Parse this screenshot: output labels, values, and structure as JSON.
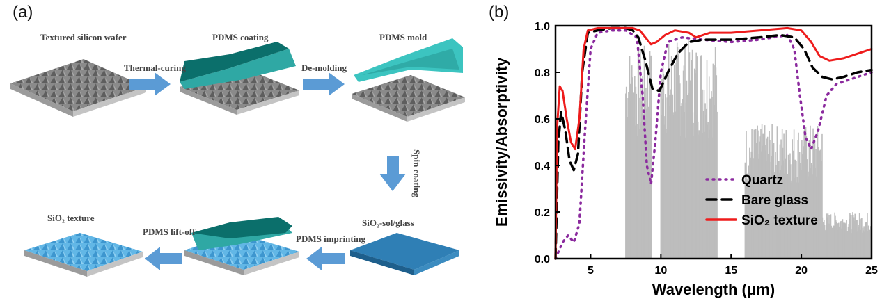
{
  "panel_a": {
    "letter": "(a)",
    "steps": {
      "textured_wafer": "Textured silicon wafer",
      "thermal_curing": "Thermal-curing",
      "pdms_coating": "PDMS coating",
      "de_molding": "De-molding",
      "pdms_mold": "PDMS mold",
      "spin_coating": "Spin coating",
      "sio2_sol_glass": "SiO₂-sol/glass",
      "pdms_imprinting": "PDMS imprinting",
      "pdms_liftoff": "PDMS lift-off",
      "sio2_texture": "SiO₂ texture"
    },
    "colors": {
      "silicon": "#707070",
      "pdms": "#3cc4c0",
      "arrow": "#5b9bd5",
      "glass": "#2f7fb5",
      "texture": "#4aa8dd"
    }
  },
  "panel_b": {
    "letter": "(b)"
  },
  "chart_data": {
    "type": "line",
    "xlabel": "Wavelength (μm)",
    "ylabel": "Emissivity/Absorptivity",
    "xlim": [
      2.5,
      25
    ],
    "ylim": [
      0.0,
      1.0
    ],
    "xticks": [
      "5",
      "10",
      "15",
      "20",
      "25"
    ],
    "yticks": [
      "0.0",
      "0.2",
      "0.4",
      "0.6",
      "0.8",
      "1.0"
    ],
    "grid": false,
    "legend_position": "lower-right",
    "series": [
      {
        "name": "Quartz",
        "color": "#8b2a9e",
        "style": "dotted",
        "points": [
          [
            2.5,
            0.0
          ],
          [
            3.0,
            0.07
          ],
          [
            3.4,
            0.1
          ],
          [
            3.8,
            0.07
          ],
          [
            4.2,
            0.15
          ],
          [
            4.6,
            0.55
          ],
          [
            5.0,
            0.9
          ],
          [
            5.5,
            0.97
          ],
          [
            6.5,
            0.98
          ],
          [
            7.5,
            0.98
          ],
          [
            8.3,
            0.95
          ],
          [
            8.7,
            0.7
          ],
          [
            9.0,
            0.4
          ],
          [
            9.3,
            0.32
          ],
          [
            9.6,
            0.5
          ],
          [
            10.0,
            0.8
          ],
          [
            10.5,
            0.93
          ],
          [
            11.5,
            0.95
          ],
          [
            13.0,
            0.94
          ],
          [
            15.0,
            0.93
          ],
          [
            17.0,
            0.94
          ],
          [
            19.0,
            0.96
          ],
          [
            19.5,
            0.9
          ],
          [
            19.9,
            0.7
          ],
          [
            20.3,
            0.52
          ],
          [
            20.7,
            0.47
          ],
          [
            21.2,
            0.55
          ],
          [
            21.8,
            0.7
          ],
          [
            22.5,
            0.75
          ],
          [
            23.5,
            0.77
          ],
          [
            24.5,
            0.79
          ],
          [
            25.0,
            0.8
          ]
        ]
      },
      {
        "name": "Bare glass",
        "color": "#000000",
        "style": "dashed",
        "points": [
          [
            2.5,
            0.0
          ],
          [
            2.7,
            0.5
          ],
          [
            2.9,
            0.63
          ],
          [
            3.2,
            0.55
          ],
          [
            3.5,
            0.42
          ],
          [
            3.8,
            0.38
          ],
          [
            4.1,
            0.45
          ],
          [
            4.4,
            0.8
          ],
          [
            4.8,
            0.97
          ],
          [
            5.5,
            0.98
          ],
          [
            6.5,
            0.99
          ],
          [
            7.5,
            0.99
          ],
          [
            8.0,
            0.98
          ],
          [
            8.4,
            0.95
          ],
          [
            8.9,
            0.85
          ],
          [
            9.4,
            0.73
          ],
          [
            9.9,
            0.72
          ],
          [
            10.5,
            0.8
          ],
          [
            11.2,
            0.88
          ],
          [
            12.0,
            0.93
          ],
          [
            13.0,
            0.94
          ],
          [
            15.0,
            0.94
          ],
          [
            17.0,
            0.95
          ],
          [
            18.5,
            0.96
          ],
          [
            19.5,
            0.95
          ],
          [
            20.2,
            0.9
          ],
          [
            20.8,
            0.82
          ],
          [
            21.5,
            0.78
          ],
          [
            22.2,
            0.77
          ],
          [
            23.0,
            0.78
          ],
          [
            24.0,
            0.8
          ],
          [
            25.0,
            0.81
          ]
        ]
      },
      {
        "name": "SiO₂ texture",
        "color": "#ee1c1c",
        "style": "solid",
        "points": [
          [
            2.5,
            0.0
          ],
          [
            2.6,
            0.55
          ],
          [
            2.8,
            0.74
          ],
          [
            3.0,
            0.72
          ],
          [
            3.3,
            0.6
          ],
          [
            3.6,
            0.5
          ],
          [
            3.9,
            0.47
          ],
          [
            4.2,
            0.6
          ],
          [
            4.5,
            0.9
          ],
          [
            4.8,
            0.98
          ],
          [
            5.5,
            0.99
          ],
          [
            7.0,
            0.99
          ],
          [
            8.0,
            0.99
          ],
          [
            8.5,
            0.98
          ],
          [
            8.9,
            0.95
          ],
          [
            9.3,
            0.92
          ],
          [
            9.7,
            0.93
          ],
          [
            10.3,
            0.96
          ],
          [
            11.0,
            0.98
          ],
          [
            12.0,
            0.97
          ],
          [
            12.5,
            0.95
          ],
          [
            13.5,
            0.97
          ],
          [
            15.0,
            0.97
          ],
          [
            17.0,
            0.98
          ],
          [
            19.0,
            0.99
          ],
          [
            20.0,
            0.98
          ],
          [
            20.7,
            0.93
          ],
          [
            21.3,
            0.87
          ],
          [
            22.0,
            0.85
          ],
          [
            23.0,
            0.86
          ],
          [
            24.0,
            0.88
          ],
          [
            25.0,
            0.9
          ]
        ]
      }
    ],
    "atmospheric_window_color": "#bdbdbd"
  }
}
